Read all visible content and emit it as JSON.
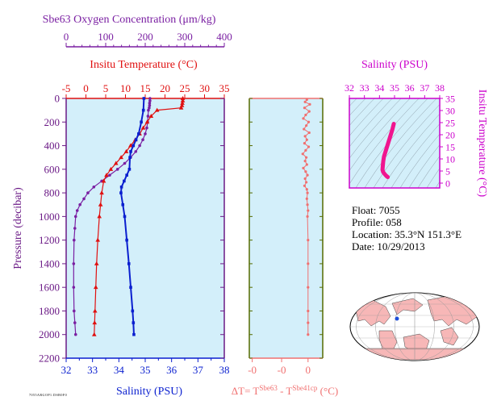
{
  "colors": {
    "background": "#d3effa",
    "oxygen": "#7a1fa2",
    "temperature": "#e01010",
    "salinity": "#0a1fcf",
    "delta": "#f07070",
    "ts_curve": "#f0158f",
    "ts_axis": "#cc00cc",
    "pressure_axis": "#6b1a86",
    "map_land": "#f7b7b7",
    "map_ocean": "#ffffff",
    "map_marker": "#1e4ed8"
  },
  "info": {
    "float": "Float:  7055",
    "profile": "Profile:  058",
    "location": "Location:  35.3°N  151.3°E",
    "date": "Date:  10/29/2013"
  },
  "footer_code": "7055ARGOP1.DSB0F0",
  "chart_data": [
    {
      "type": "line",
      "title": "",
      "ylabel": "Pressure (decibar)",
      "ylim": [
        2200,
        0
      ],
      "yticks": [
        0,
        200,
        400,
        600,
        800,
        1000,
        1200,
        1400,
        1600,
        1800,
        2000,
        2200
      ],
      "axes": {
        "oxygen": {
          "label": "Sbe63 Oxygen Concentration (μm/kg)",
          "lim": [
            0,
            400
          ],
          "ticks": [
            0,
            100,
            200,
            300,
            400
          ]
        },
        "temperature": {
          "label": "Insitu Temperature (°C)",
          "lim": [
            -5,
            35
          ],
          "ticks": [
            -5,
            0,
            5,
            10,
            15,
            20,
            25,
            30,
            35
          ]
        },
        "salinity": {
          "label": "Salinity (PSU)",
          "lim": [
            32,
            38
          ],
          "ticks": [
            32,
            33,
            34,
            35,
            36,
            37,
            38
          ]
        }
      },
      "series": [
        {
          "name": "Oxygen",
          "axis": "oxygen",
          "x": [
            212,
            212,
            211,
            211,
            210,
            208,
            207,
            206,
            204,
            200,
            194,
            186,
            176,
            163,
            148,
            130,
            110,
            90,
            70,
            55,
            45,
            35,
            28,
            24,
            22,
            20,
            19,
            19,
            20,
            22,
            24
          ],
          "y": [
            0,
            20,
            40,
            60,
            80,
            100,
            150,
            200,
            250,
            300,
            350,
            400,
            450,
            500,
            550,
            600,
            650,
            700,
            750,
            800,
            850,
            900,
            950,
            1000,
            1100,
            1200,
            1400,
            1600,
            1800,
            1900,
            2000
          ]
        },
        {
          "name": "Temperature",
          "axis": "temperature",
          "x": [
            24.5,
            24.5,
            24.4,
            24.3,
            24.1,
            18.0,
            16.5,
            15.5,
            14.5,
            13.6,
            12.5,
            11.3,
            10.2,
            8.9,
            7.6,
            6.3,
            5.2,
            4.5,
            4.0,
            3.7,
            3.4,
            3.0,
            2.7,
            2.5,
            2.3,
            2.2,
            2.1
          ],
          "y": [
            0,
            20,
            40,
            60,
            80,
            100,
            150,
            200,
            250,
            300,
            350,
            400,
            450,
            500,
            550,
            600,
            650,
            700,
            800,
            900,
            1000,
            1200,
            1400,
            1600,
            1800,
            1900,
            2000
          ]
        },
        {
          "name": "Salinity",
          "axis": "salinity",
          "x": [
            34.95,
            34.93,
            34.85,
            34.75,
            34.65,
            34.55,
            34.45,
            34.42,
            34.4,
            34.3,
            34.2,
            34.1,
            34.08,
            34.15,
            34.22,
            34.3,
            34.38,
            34.45,
            34.52,
            34.55,
            34.57
          ],
          "y": [
            0,
            100,
            200,
            300,
            350,
            400,
            450,
            500,
            600,
            650,
            700,
            750,
            800,
            900,
            1000,
            1200,
            1400,
            1600,
            1800,
            1900,
            2000
          ]
        }
      ]
    },
    {
      "type": "scatter",
      "title": "",
      "xlabel": "ΔT= T",
      "xlabel_sup1": "Sbe63",
      "xlabel_mid": " - T",
      "xlabel_sup2": "Sbe41cp",
      "xlabel_unit": " (°C)",
      "xlim": [
        -1.0,
        0.25
      ],
      "xticks": [
        {
          "v": -0.95,
          "label": "-0"
        },
        {
          "v": -0.45,
          "label": "-0"
        },
        {
          "v": 0.0,
          "label": "0"
        }
      ],
      "ylim": [
        2200,
        0
      ],
      "series": [
        {
          "name": "ΔT",
          "x": [
            -0.02,
            -0.05,
            0.03,
            -0.06,
            0.02,
            -0.04,
            -0.08,
            0.01,
            -0.03,
            -0.07,
            0.02,
            -0.05,
            -0.02,
            -0.06,
            0.01,
            -0.04,
            -0.09,
            -0.03,
            -0.05,
            -0.02,
            -0.08,
            -0.04,
            -0.01,
            -0.05,
            -0.03,
            -0.06,
            -0.02,
            -0.01,
            -0.02,
            -0.01,
            0.0,
            -0.01,
            0.0,
            0.0,
            0.0,
            0.0,
            0.0,
            0.0
          ],
          "y": [
            10,
            30,
            50,
            80,
            110,
            140,
            170,
            200,
            230,
            260,
            290,
            320,
            350,
            380,
            410,
            440,
            470,
            500,
            530,
            560,
            590,
            620,
            650,
            680,
            710,
            740,
            770,
            800,
            850,
            900,
            950,
            1000,
            1200,
            1400,
            1600,
            1800,
            1900,
            2000
          ]
        }
      ]
    },
    {
      "type": "line",
      "title": "",
      "xlabel": "Salinity (PSU)",
      "ylabel": "Insitu Temperature (°C)",
      "xlim": [
        32,
        38
      ],
      "xticks": [
        32,
        33,
        34,
        35,
        36,
        37,
        38
      ],
      "ylim": [
        -2,
        35
      ],
      "yticks": [
        0,
        5,
        10,
        15,
        20,
        25,
        30,
        35
      ],
      "series": [
        {
          "name": "T-S",
          "x": [
            34.95,
            34.85,
            34.7,
            34.6,
            34.5,
            34.4,
            34.3,
            34.25,
            34.22,
            34.2,
            34.25,
            34.35,
            34.45,
            34.55
          ],
          "y": [
            24.5,
            22,
            19,
            17,
            15,
            13,
            11,
            9,
            7,
            5.5,
            4.5,
            3.7,
            3.0,
            2.5
          ]
        }
      ]
    }
  ]
}
